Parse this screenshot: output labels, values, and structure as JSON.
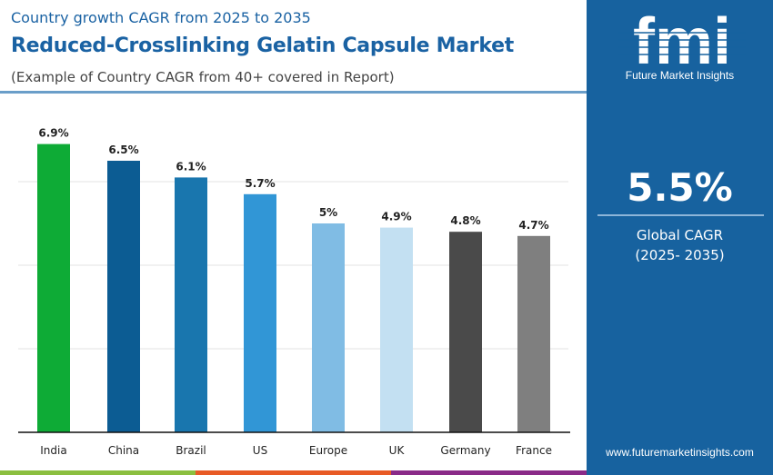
{
  "header": {
    "subtitle": "Country growth CAGR from 2025 to 2035",
    "title": "Reduced-Crosslinking Gelatin Capsule Market",
    "note": "(Example of Country CAGR from 40+ covered in Report)"
  },
  "side_panel": {
    "logo_text": "fmi",
    "brand": "Future Market Insights",
    "value": "5.5%",
    "label_line1": "Global CAGR",
    "label_line2": "(2025- 2035)",
    "url": "www.futuremarketinsights.com",
    "background": "#17629f"
  },
  "bottom_strip_colors": [
    "#8bbf3f",
    "#e85a25",
    "#8a2a88"
  ],
  "chart_data": {
    "type": "bar",
    "categories": [
      "India",
      "China",
      "Brazil",
      "US",
      "Europe",
      "UK",
      "Germany",
      "France"
    ],
    "values": [
      6.9,
      6.5,
      6.1,
      5.7,
      5,
      4.9,
      4.8,
      4.7
    ],
    "data_labels": [
      "6.9%",
      "6.5%",
      "6.1%",
      "5.7%",
      "5%",
      "4.9%",
      "4.8%",
      "4.7%"
    ],
    "colors": [
      "#0eab36",
      "#0c5c93",
      "#1976ae",
      "#3196d6",
      "#80bce4",
      "#c3e0f2",
      "#4a4a4a",
      "#7f7f7f"
    ],
    "ylim": [
      0,
      8
    ],
    "grid": true,
    "xlabel": "",
    "ylabel": ""
  }
}
